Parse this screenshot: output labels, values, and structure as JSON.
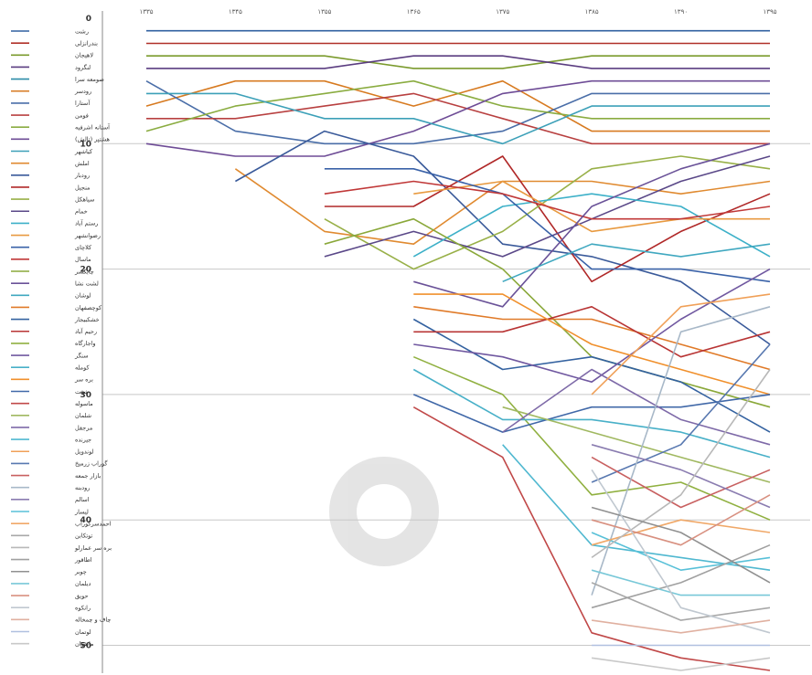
{
  "chart_data": {
    "type": "line",
    "title": "",
    "xlabel": "",
    "ylabel": "",
    "x": [
      "۱۳۳۵",
      "۱۳۴۵",
      "۱۳۵۵",
      "۱۳۶۵",
      "۱۳۷۵",
      "۱۳۸۵",
      "۱۳۹۰",
      "۱۳۹۵"
    ],
    "ylim": [
      0,
      52
    ],
    "y_ticks": [
      0,
      10,
      20,
      30,
      40,
      50
    ],
    "y_reversed": true,
    "grid": true,
    "legend_position": "left",
    "series": [
      {
        "name": "رشت",
        "color": "#3060a0",
        "values": [
          1,
          1,
          1,
          1,
          1,
          1,
          1,
          1
        ]
      },
      {
        "name": "بندرانزلی",
        "color": "#b03028",
        "values": [
          2,
          2,
          2,
          2,
          2,
          2,
          2,
          2
        ]
      },
      {
        "name": "لاهیجان",
        "color": "#7a9a2c",
        "values": [
          3,
          3,
          3,
          4,
          4,
          3,
          3,
          3
        ]
      },
      {
        "name": "لنگرود",
        "color": "#5a3c80",
        "values": [
          4,
          4,
          4,
          3,
          3,
          4,
          4,
          4
        ]
      },
      {
        "name": "صومعه سرا",
        "color": "#2c8ca8",
        "values": [
          null,
          null,
          null,
          null,
          null,
          null,
          null,
          null
        ]
      },
      {
        "name": "رودسر",
        "color": "#d77a20",
        "values": [
          7,
          5,
          5,
          7,
          5,
          9,
          9,
          9
        ]
      },
      {
        "name": "آستارا",
        "color": "#4a6ea8",
        "values": [
          5,
          9,
          10,
          10,
          9,
          6,
          6,
          6
        ]
      },
      {
        "name": "فومن",
        "color": "#b84040",
        "values": [
          8,
          8,
          7,
          6,
          8,
          10,
          10,
          10
        ]
      },
      {
        "name": "آستانه اشرفیه",
        "color": "#8aac40",
        "values": [
          9,
          7,
          6,
          5,
          7,
          8,
          8,
          8
        ]
      },
      {
        "name": "هشتپر (تالش)",
        "color": "#6e4c96",
        "values": [
          10,
          11,
          11,
          9,
          6,
          5,
          5,
          5
        ]
      },
      {
        "name": "کیاشهر",
        "color": "#3ca0b8",
        "values": [
          6,
          6,
          8,
          8,
          10,
          7,
          7,
          7
        ]
      },
      {
        "name": "املش",
        "color": "#e08a30",
        "values": [
          null,
          12,
          17,
          18,
          13,
          13,
          14,
          13
        ]
      },
      {
        "name": "رودبار",
        "color": "#3a5a9a",
        "values": [
          null,
          13,
          9,
          11,
          18,
          19,
          21,
          26
        ]
      },
      {
        "name": "منجیل",
        "color": "#b02828",
        "values": [
          null,
          null,
          15,
          15,
          11,
          21,
          17,
          14
        ]
      },
      {
        "name": "سیاهکل",
        "color": "#98b048",
        "values": [
          null,
          null,
          16,
          20,
          17,
          12,
          11,
          12
        ]
      },
      {
        "name": "خمام",
        "color": "#5a4888",
        "values": [
          null,
          null,
          19,
          17,
          19,
          16,
          13,
          11
        ]
      },
      {
        "name": "رستم آباد",
        "color": "#3cb0c8",
        "values": [
          null,
          null,
          null,
          19,
          15,
          14,
          15,
          19
        ]
      },
      {
        "name": "رضوانشهر",
        "color": "#e89a40",
        "values": [
          null,
          null,
          null,
          14,
          13,
          17,
          16,
          16
        ]
      },
      {
        "name": "کلاچای",
        "color": "#3a62a8",
        "values": [
          null,
          null,
          12,
          12,
          14,
          20,
          20,
          21
        ]
      },
      {
        "name": "ماسال",
        "color": "#c03838",
        "values": [
          null,
          null,
          14,
          13,
          14,
          16,
          16,
          15
        ]
      },
      {
        "name": "چابکسر",
        "color": "#8aa83a",
        "values": [
          null,
          null,
          18,
          16,
          20,
          27,
          29,
          31
        ]
      },
      {
        "name": "لشت نشا",
        "color": "#6a5298",
        "values": [
          null,
          null,
          null,
          21,
          23,
          15,
          12,
          10
        ]
      },
      {
        "name": "لوشان",
        "color": "#40a8c0",
        "values": [
          null,
          null,
          null,
          null,
          21,
          18,
          19,
          18
        ]
      },
      {
        "name": "کوچصفهان",
        "color": "#e07a28",
        "values": [
          null,
          null,
          null,
          23,
          24,
          24,
          26,
          28
        ]
      },
      {
        "name": "خشکبیجار",
        "color": "#3462a0",
        "values": [
          null,
          null,
          null,
          24,
          28,
          27,
          29,
          33
        ]
      },
      {
        "name": "رحیم آباد",
        "color": "#b83434",
        "values": [
          null,
          null,
          null,
          25,
          25,
          23,
          27,
          25
        ]
      },
      {
        "name": "واجارگاه",
        "color": "#90b040",
        "values": [
          null,
          null,
          null,
          27,
          30,
          38,
          37,
          40
        ]
      },
      {
        "name": "سنگر",
        "color": "#7058a0",
        "values": [
          null,
          null,
          null,
          26,
          27,
          29,
          24,
          20
        ]
      },
      {
        "name": "کومله",
        "color": "#48b0c8",
        "values": [
          null,
          null,
          null,
          28,
          32,
          32,
          33,
          35
        ]
      },
      {
        "name": "بره سر",
        "color": "#f0902c",
        "values": [
          null,
          null,
          null,
          22,
          22,
          26,
          28,
          30
        ]
      },
      {
        "name": "شفت",
        "color": "#4068a8",
        "values": [
          null,
          null,
          null,
          30,
          33,
          31,
          31,
          30
        ]
      },
      {
        "name": "ماسوله",
        "color": "#c04848",
        "values": [
          null,
          null,
          null,
          31,
          35,
          49,
          51,
          52
        ]
      },
      {
        "name": "شلمان",
        "color": "#a0b860",
        "values": [
          null,
          null,
          null,
          null,
          31,
          33,
          35,
          37
        ]
      },
      {
        "name": "مرجقل",
        "color": "#7e6aa8",
        "values": [
          null,
          null,
          null,
          null,
          33,
          28,
          32,
          34
        ]
      },
      {
        "name": "جیرنده",
        "color": "#50b8d0",
        "values": [
          null,
          null,
          null,
          null,
          34,
          42,
          43,
          44
        ]
      },
      {
        "name": "لوندویل",
        "color": "#f0a058",
        "values": [
          null,
          null,
          null,
          null,
          null,
          30,
          23,
          22
        ]
      },
      {
        "name": "گوراب زرمیخ",
        "color": "#5878b0",
        "values": [
          null,
          null,
          null,
          null,
          null,
          37,
          34,
          26
        ]
      },
      {
        "name": "بازار جمعه",
        "color": "#c86060",
        "values": [
          null,
          null,
          null,
          null,
          null,
          35,
          39,
          36
        ]
      },
      {
        "name": "رودبنه",
        "color": "#a8b8c8",
        "values": [
          null,
          null,
          null,
          null,
          null,
          46,
          25,
          23
        ]
      },
      {
        "name": "اسالم",
        "color": "#8a7cb0",
        "values": [
          null,
          null,
          null,
          null,
          null,
          34,
          36,
          39
        ]
      },
      {
        "name": "لیسار",
        "color": "#58c0d8",
        "values": [
          null,
          null,
          null,
          null,
          null,
          41,
          44,
          43
        ]
      },
      {
        "name": "احمدسرگوراب",
        "color": "#f0a868",
        "values": [
          null,
          null,
          null,
          null,
          null,
          42,
          40,
          41
        ]
      },
      {
        "name": "توتکابن",
        "color": "#a8a8a8",
        "values": [
          null,
          null,
          null,
          null,
          null,
          45,
          48,
          47
        ]
      },
      {
        "name": "بره سر عمارلو",
        "color": "#b8b8b8",
        "values": [
          null,
          null,
          null,
          null,
          null,
          43,
          38,
          28
        ]
      },
      {
        "name": "اطاقور",
        "color": "#a0a0a0",
        "values": [
          null,
          null,
          null,
          null,
          null,
          47,
          45,
          42
        ]
      },
      {
        "name": "چوبر",
        "color": "#909090",
        "values": [
          null,
          null,
          null,
          null,
          null,
          39,
          41,
          45
        ]
      },
      {
        "name": "دیلمان",
        "color": "#78c8d8",
        "values": [
          null,
          null,
          null,
          null,
          null,
          44,
          46,
          46
        ]
      },
      {
        "name": "حویق",
        "color": "#d89080",
        "values": [
          null,
          null,
          null,
          null,
          null,
          40,
          42,
          38
        ]
      },
      {
        "name": "رانکوه",
        "color": "#c0c8d0",
        "values": [
          null,
          null,
          null,
          null,
          null,
          36,
          47,
          49
        ]
      },
      {
        "name": "چاف و چمخاله",
        "color": "#e0b0a0",
        "values": [
          null,
          null,
          null,
          null,
          null,
          48,
          49,
          48
        ]
      },
      {
        "name": "لوتمان",
        "color": "#b0c0e0",
        "values": [
          null,
          null,
          null,
          null,
          null,
          50,
          50,
          50
        ]
      },
      {
        "name": "مانقوان",
        "color": "#c8c8c8",
        "values": [
          null,
          null,
          null,
          null,
          null,
          51,
          52,
          51
        ]
      }
    ]
  }
}
